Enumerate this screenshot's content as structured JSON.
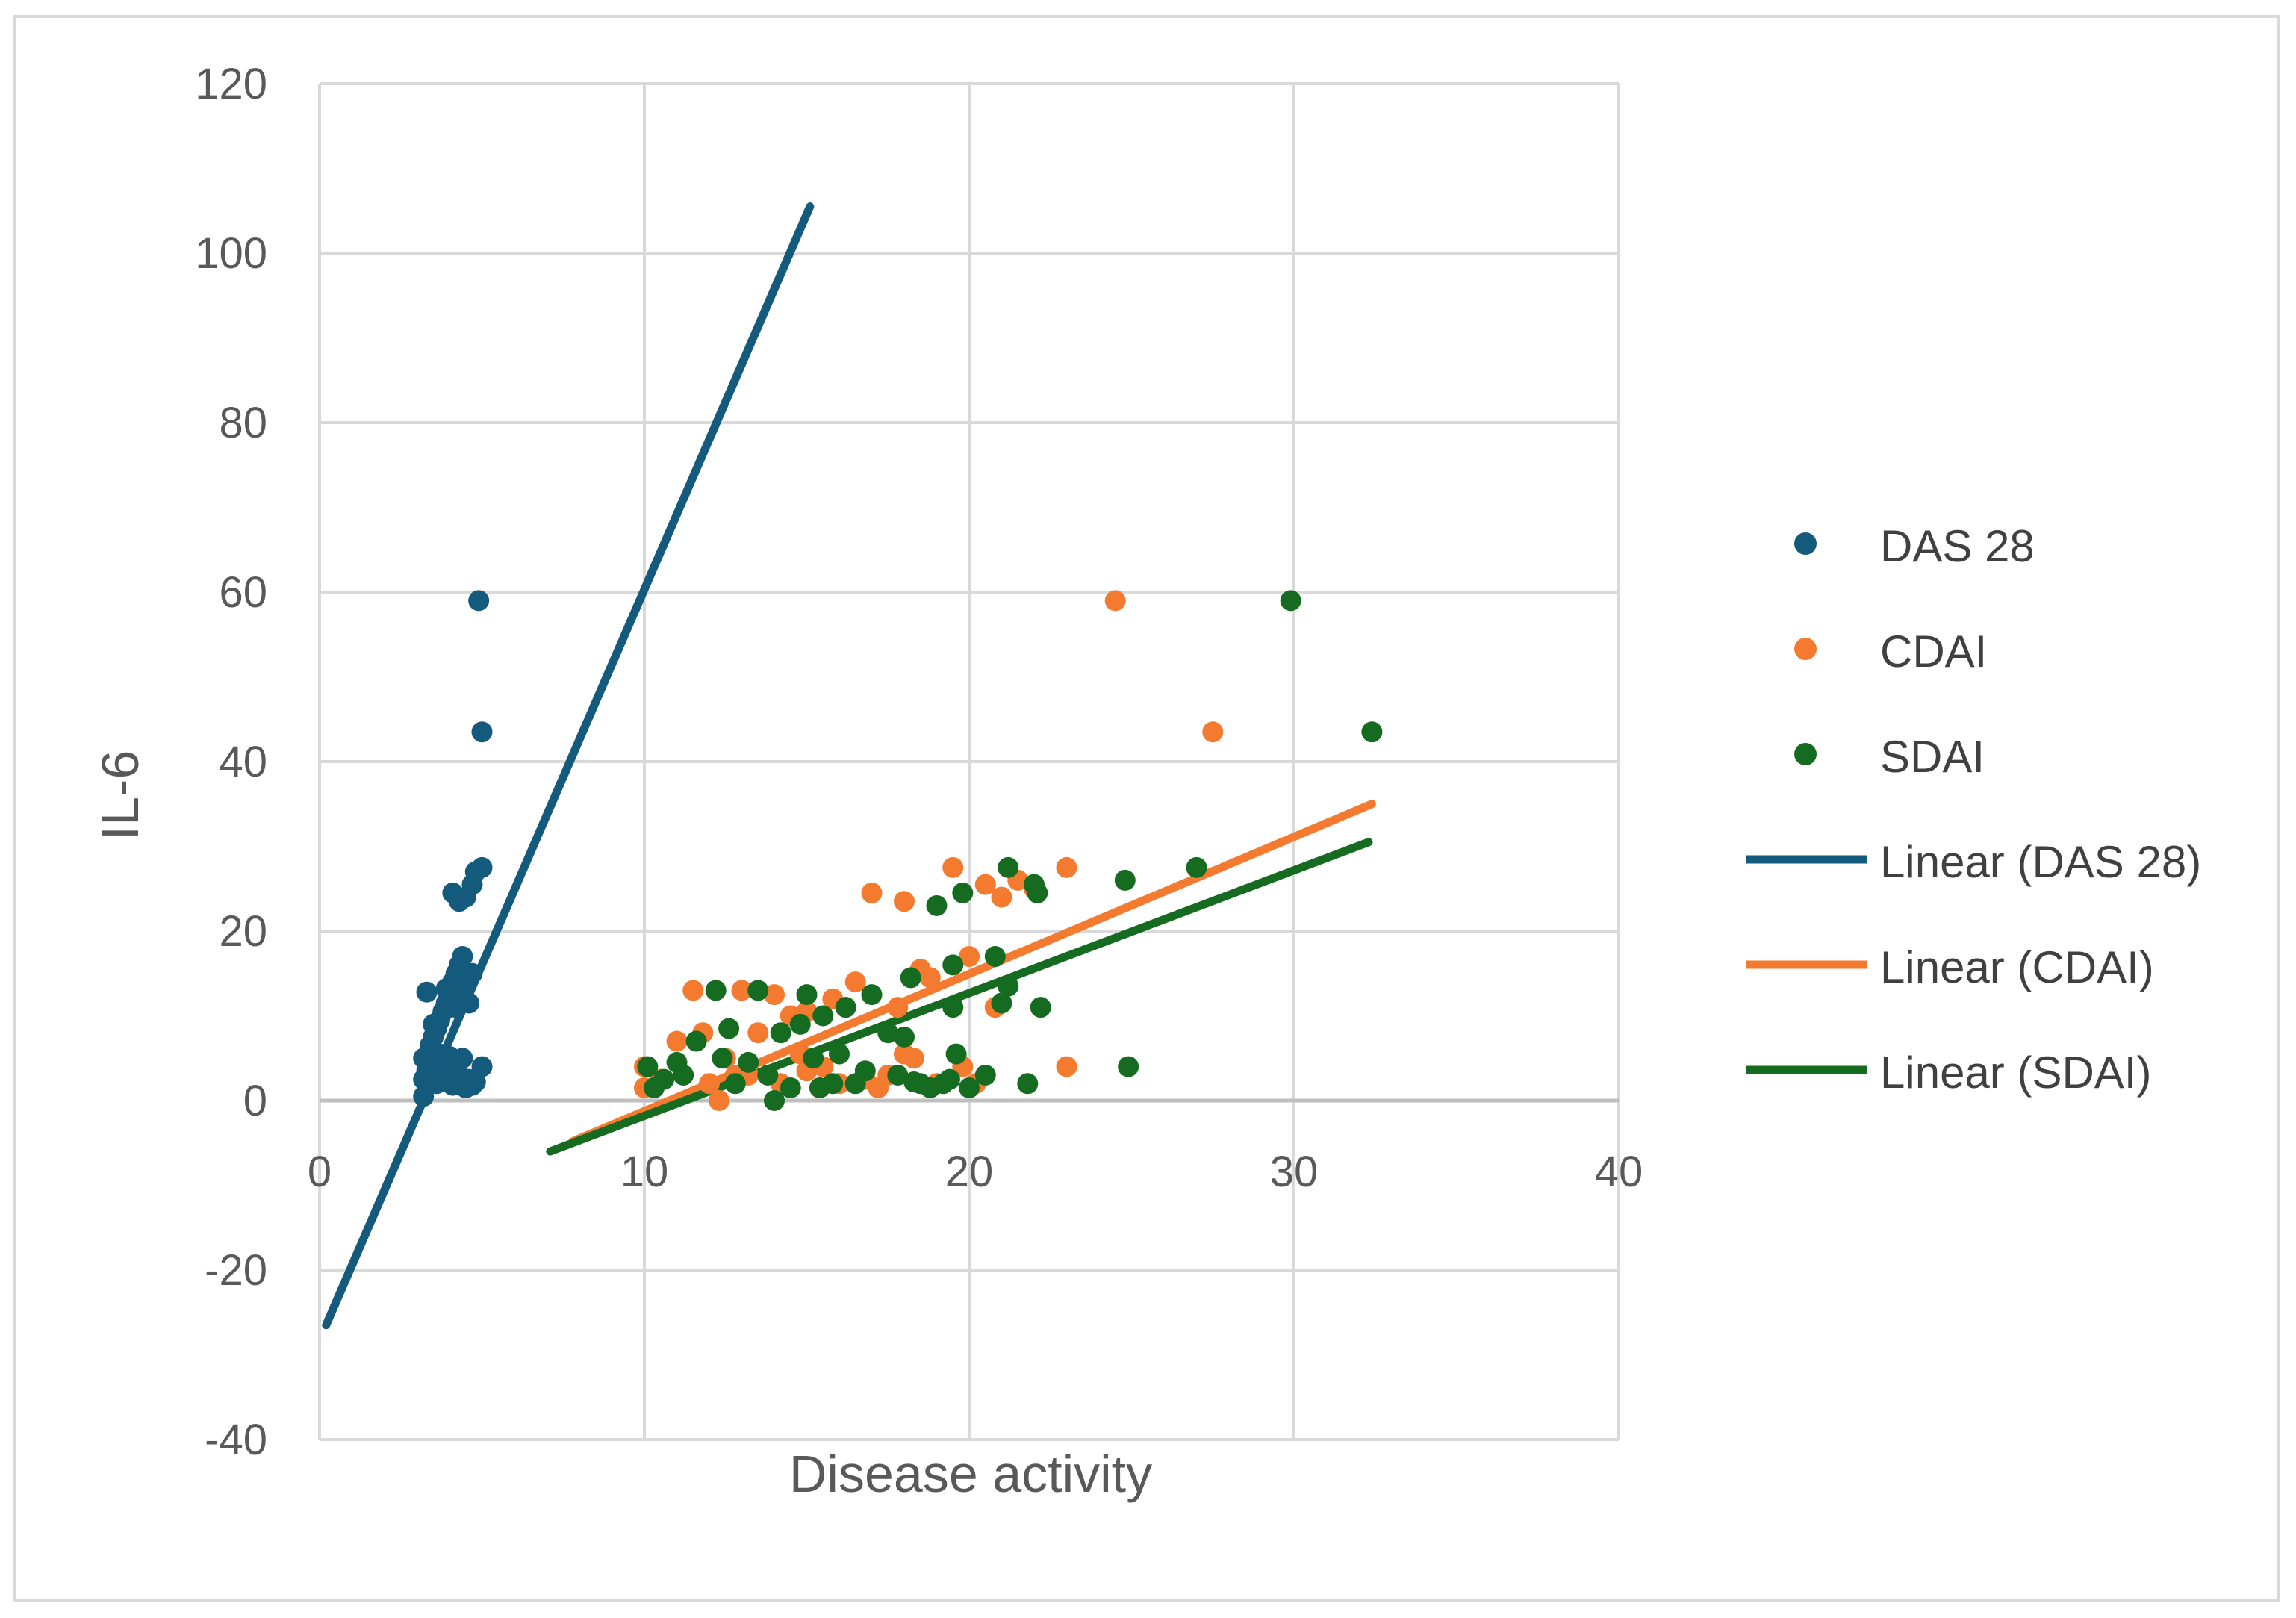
{
  "chart_data": {
    "type": "scatter",
    "title": "",
    "xlabel": "Disease activity",
    "ylabel": "IL-6",
    "xlim": [
      0,
      40
    ],
    "ylim": [
      -40,
      120
    ],
    "x_ticks": [
      0,
      10,
      20,
      30,
      40
    ],
    "y_ticks": [
      -40,
      -20,
      0,
      20,
      40,
      60,
      80,
      100,
      120
    ],
    "x_tick_labels": [
      "0",
      "10",
      "20",
      "30",
      "40"
    ],
    "y_tick_labels": [
      "-40",
      "-20",
      "0",
      "20",
      "40",
      "60",
      "80",
      "100",
      "120"
    ],
    "grid": true,
    "legend_position": "right",
    "series": [
      {
        "name": "DAS 28",
        "color": "#145a7c",
        "points": [
          [
            3.2,
            0.5
          ],
          [
            3.3,
            1.8
          ],
          [
            3.2,
            2.5
          ],
          [
            3.3,
            3.5
          ],
          [
            3.4,
            4.2
          ],
          [
            3.2,
            5.0
          ],
          [
            3.5,
            3.0
          ],
          [
            3.6,
            2.0
          ],
          [
            3.4,
            6.5
          ],
          [
            3.5,
            7.5
          ],
          [
            3.6,
            8.5
          ],
          [
            3.7,
            9.5
          ],
          [
            3.8,
            10.5
          ],
          [
            3.9,
            11.5
          ],
          [
            3.7,
            5.5
          ],
          [
            3.8,
            4.5
          ],
          [
            3.9,
            3.5
          ],
          [
            4.0,
            2.5
          ],
          [
            4.1,
            1.8
          ],
          [
            3.3,
            12.8
          ],
          [
            3.9,
            13.2
          ],
          [
            4.0,
            12.5
          ],
          [
            4.1,
            14.0
          ],
          [
            4.2,
            15.0
          ],
          [
            4.3,
            16.0
          ],
          [
            4.4,
            17.0
          ],
          [
            4.2,
            11.0
          ],
          [
            4.3,
            12.0
          ],
          [
            4.4,
            13.0
          ],
          [
            4.5,
            14.5
          ],
          [
            4.6,
            11.5
          ],
          [
            4.7,
            15.0
          ],
          [
            4.4,
            5.0
          ],
          [
            4.3,
            3.0
          ],
          [
            4.2,
            2.0
          ],
          [
            4.5,
            1.5
          ],
          [
            4.6,
            2.5
          ],
          [
            4.7,
            1.8
          ],
          [
            4.8,
            2.2
          ],
          [
            5.0,
            4.0
          ],
          [
            4.1,
            24.5
          ],
          [
            4.3,
            23.5
          ],
          [
            4.5,
            24.0
          ],
          [
            4.7,
            25.5
          ],
          [
            4.8,
            27.0
          ],
          [
            5.0,
            27.5
          ],
          [
            4.9,
            59.0
          ],
          [
            5.0,
            43.5
          ],
          [
            3.6,
            4.8
          ],
          [
            3.8,
            3.2
          ],
          [
            4.0,
            5.2
          ],
          [
            4.1,
            4.0
          ],
          [
            3.5,
            9.0
          ],
          [
            4.0,
            11.0
          ]
        ],
        "trend": {
          "name": "Linear (DAS 28)",
          "x0": 0.2,
          "y0": -26.5,
          "x1": 15.1,
          "y1": 105.5
        }
      },
      {
        "name": "CDAI",
        "color": "#f47a30",
        "points": [
          [
            10.0,
            1.5
          ],
          [
            10.0,
            4.0
          ],
          [
            10.5,
            2.5
          ],
          [
            11.0,
            7.0
          ],
          [
            11.5,
            13.0
          ],
          [
            11.8,
            8.0
          ],
          [
            12.0,
            2.0
          ],
          [
            12.3,
            0.0
          ],
          [
            12.5,
            5.0
          ],
          [
            13.0,
            13.0
          ],
          [
            13.2,
            3.0
          ],
          [
            13.5,
            8.0
          ],
          [
            14.0,
            12.5
          ],
          [
            14.2,
            2.0
          ],
          [
            14.5,
            10.0
          ],
          [
            15.0,
            10.5
          ],
          [
            15.0,
            3.5
          ],
          [
            15.5,
            4.0
          ],
          [
            15.8,
            12.0
          ],
          [
            16.0,
            2.0
          ],
          [
            16.2,
            11.0
          ],
          [
            16.5,
            14.0
          ],
          [
            17.0,
            24.5
          ],
          [
            17.2,
            1.5
          ],
          [
            17.5,
            3.0
          ],
          [
            17.8,
            11.0
          ],
          [
            18.0,
            23.5
          ],
          [
            18.0,
            5.5
          ],
          [
            18.3,
            5.0
          ],
          [
            18.5,
            15.5
          ],
          [
            18.8,
            14.5
          ],
          [
            19.0,
            2.0
          ],
          [
            19.5,
            27.5
          ],
          [
            19.8,
            4.0
          ],
          [
            20.0,
            17.0
          ],
          [
            20.2,
            2.0
          ],
          [
            20.5,
            25.5
          ],
          [
            20.8,
            11.0
          ],
          [
            21.0,
            24.0
          ],
          [
            21.5,
            26.0
          ],
          [
            22.0,
            25.0
          ],
          [
            23.0,
            27.5
          ],
          [
            23.0,
            4.0
          ],
          [
            24.5,
            59.0
          ],
          [
            27.5,
            43.5
          ],
          [
            14.8,
            5.5
          ],
          [
            16.8,
            2.5
          ],
          [
            12.8,
            3.0
          ]
        ],
        "trend": {
          "name": "Linear (CDAI)",
          "x0": 7.8,
          "y0": -4.8,
          "x1": 32.4,
          "y1": 35.0
        }
      },
      {
        "name": "SDAI",
        "color": "#156b1f",
        "points": [
          [
            10.1,
            4.0
          ],
          [
            10.3,
            1.5
          ],
          [
            10.6,
            2.5
          ],
          [
            11.0,
            4.5
          ],
          [
            11.2,
            3.0
          ],
          [
            11.6,
            7.0
          ],
          [
            12.2,
            13.0
          ],
          [
            12.4,
            5.0
          ],
          [
            12.6,
            8.5
          ],
          [
            12.8,
            2.0
          ],
          [
            13.2,
            4.5
          ],
          [
            13.5,
            13.0
          ],
          [
            13.8,
            3.0
          ],
          [
            14.0,
            0.0
          ],
          [
            14.2,
            8.0
          ],
          [
            14.5,
            1.5
          ],
          [
            14.8,
            9.0
          ],
          [
            15.0,
            12.5
          ],
          [
            15.2,
            5.0
          ],
          [
            15.5,
            10.0
          ],
          [
            15.8,
            2.0
          ],
          [
            16.0,
            5.5
          ],
          [
            16.2,
            11.0
          ],
          [
            16.5,
            2.0
          ],
          [
            16.8,
            3.5
          ],
          [
            17.0,
            12.5
          ],
          [
            17.5,
            8.0
          ],
          [
            17.8,
            3.0
          ],
          [
            18.0,
            7.5
          ],
          [
            18.2,
            14.5
          ],
          [
            18.5,
            2.0
          ],
          [
            18.8,
            1.5
          ],
          [
            19.0,
            23.0
          ],
          [
            19.2,
            2.0
          ],
          [
            19.5,
            16.0
          ],
          [
            19.6,
            5.5
          ],
          [
            19.8,
            24.5
          ],
          [
            20.0,
            1.5
          ],
          [
            20.5,
            3.0
          ],
          [
            20.8,
            17.0
          ],
          [
            21.0,
            11.5
          ],
          [
            21.2,
            27.5
          ],
          [
            21.2,
            13.5
          ],
          [
            21.8,
            2.0
          ],
          [
            22.0,
            25.5
          ],
          [
            22.1,
            24.5
          ],
          [
            22.2,
            11.0
          ],
          [
            24.8,
            26.0
          ],
          [
            24.9,
            4.0
          ],
          [
            27.0,
            27.5
          ],
          [
            29.9,
            59.0
          ],
          [
            32.4,
            43.5
          ],
          [
            19.5,
            11.0
          ],
          [
            15.4,
            1.5
          ],
          [
            18.3,
            2.2
          ],
          [
            19.4,
            2.5
          ]
        ],
        "trend": {
          "name": "Linear (SDAI)",
          "x0": 7.1,
          "y0": -6.0,
          "x1": 32.3,
          "y1": 30.5
        }
      }
    ]
  }
}
